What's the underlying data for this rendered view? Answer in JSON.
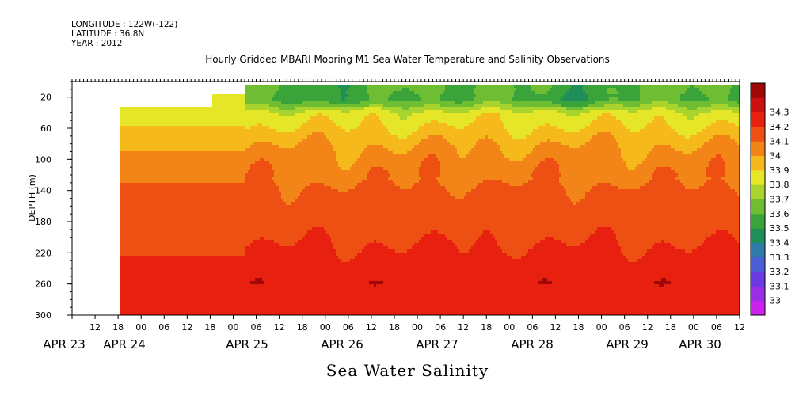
{
  "header": {
    "longitude": "LONGITUDE : 122W(-122)",
    "latitude": "LATITUDE : 36.8N",
    "year": "YEAR : 2012"
  },
  "chart_data": {
    "type": "heatmap",
    "title": "Hourly Gridded MBARI Mooring M1 Sea Water Temperature and Salinity Observations",
    "xlabel": "Sea Water Salinity",
    "ylabel": "DEPTH (m)",
    "x_start": "2012-04-23 06:00",
    "x_end": "2012-04-30 12:00",
    "x_hour_ticks": [
      "12",
      "18",
      "00",
      "06",
      "12",
      "18",
      "00",
      "06",
      "12",
      "18",
      "00",
      "06",
      "12",
      "18",
      "00",
      "06",
      "12",
      "18",
      "00",
      "06",
      "12",
      "18",
      "00",
      "06",
      "12",
      "18",
      "00",
      "06",
      "12"
    ],
    "x_day_labels": [
      "APR 23",
      "APR 24",
      "APR 25",
      "APR 26",
      "APR 27",
      "APR 28",
      "APR 29",
      "APR 30"
    ],
    "y_ticks": [
      20,
      60,
      100,
      140,
      180,
      220,
      260,
      300
    ],
    "y_range": [
      300,
      0
    ],
    "y_reversed": true,
    "colorbar": {
      "levels": [
        "33",
        "33.1",
        "33.2",
        "33.3",
        "33.4",
        "33.5",
        "33.6",
        "33.7",
        "33.8",
        "33.9",
        "34",
        "34.1",
        "34.2",
        "34.3"
      ],
      "colors": [
        "#cc22ee",
        "#9a2ee8",
        "#6a3be2",
        "#4a5ed8",
        "#2e7aa8",
        "#1f8f5a",
        "#3aa33a",
        "#6ebd32",
        "#a9d42e",
        "#e6e628",
        "#f6b91c",
        "#f28418",
        "#ee5014",
        "#e82010",
        "#cc1010",
        "#a00808"
      ]
    },
    "profiles": [
      {
        "depth": 10,
        "value": 33.62
      },
      {
        "depth": 20,
        "value": 33.6
      },
      {
        "depth": 30,
        "value": 33.72
      },
      {
        "depth": 40,
        "value": 33.85
      },
      {
        "depth": 50,
        "value": 33.88
      },
      {
        "depth": 60,
        "value": 33.92
      },
      {
        "depth": 70,
        "value": 33.96
      },
      {
        "depth": 80,
        "value": 34.0
      },
      {
        "depth": 100,
        "value": 34.05
      },
      {
        "depth": 120,
        "value": 34.08
      },
      {
        "depth": 140,
        "value": 34.12
      },
      {
        "depth": 180,
        "value": 34.16
      },
      {
        "depth": 220,
        "value": 34.22
      },
      {
        "depth": 260,
        "value": 34.28
      },
      {
        "depth": 300,
        "value": 34.22
      }
    ],
    "early_profile": [
      {
        "depth": 40,
        "value": 33.85
      },
      {
        "depth": 60,
        "value": 33.92
      },
      {
        "depth": 80,
        "value": 33.98
      },
      {
        "depth": 100,
        "value": 34.03
      },
      {
        "depth": 120,
        "value": 34.07
      },
      {
        "depth": 140,
        "value": 34.13
      },
      {
        "depth": 220,
        "value": 34.2
      },
      {
        "depth": 240,
        "value": 34.26
      },
      {
        "depth": 300,
        "value": 34.27
      }
    ]
  }
}
